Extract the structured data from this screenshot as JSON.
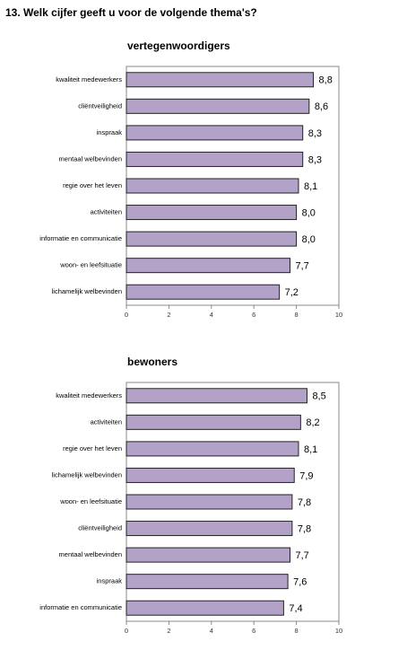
{
  "heading": "13. Welk cijfer geeft u voor de volgende thema's?",
  "chart_data": [
    {
      "type": "bar",
      "orientation": "horizontal",
      "title": "vertegenwoordigers",
      "categories": [
        "kwaliteit medewerkers",
        "cliëntveiligheid",
        "inspraak",
        "mentaal welbevinden",
        "regie over het leven",
        "activiteiten",
        "informatie en communicatie",
        "woon- en leefsituatie",
        "lichamelijk welbevinden"
      ],
      "values": [
        8.8,
        8.6,
        8.3,
        8.3,
        8.1,
        8.0,
        8.0,
        7.7,
        7.2
      ],
      "value_labels": [
        "8,8",
        "8,6",
        "8,3",
        "8,3",
        "8,1",
        "8,0",
        "8,0",
        "7,7",
        "7,2"
      ],
      "color": "#b3a2c7",
      "xlim": [
        0,
        10
      ],
      "xticks": [
        0,
        2,
        4,
        6,
        8,
        10
      ]
    },
    {
      "type": "bar",
      "orientation": "horizontal",
      "title": "bewoners",
      "categories": [
        "kwaliteit medewerkers",
        "activiteiten",
        "regie over het leven",
        "lichamelijk welbevinden",
        "woon- en leefsituatie",
        "cliëntveiligheid",
        "mentaal welbevinden",
        "inspraak",
        "informatie en communicatie"
      ],
      "values": [
        8.5,
        8.2,
        8.1,
        7.9,
        7.8,
        7.8,
        7.7,
        7.6,
        7.4
      ],
      "value_labels": [
        "8,5",
        "8,2",
        "8,1",
        "7,9",
        "7,8",
        "7,8",
        "7,7",
        "7,6",
        "7,4"
      ],
      "color": "#b3a2c7",
      "xlim": [
        0,
        10
      ],
      "xticks": [
        0,
        2,
        4,
        6,
        8,
        10
      ]
    }
  ]
}
